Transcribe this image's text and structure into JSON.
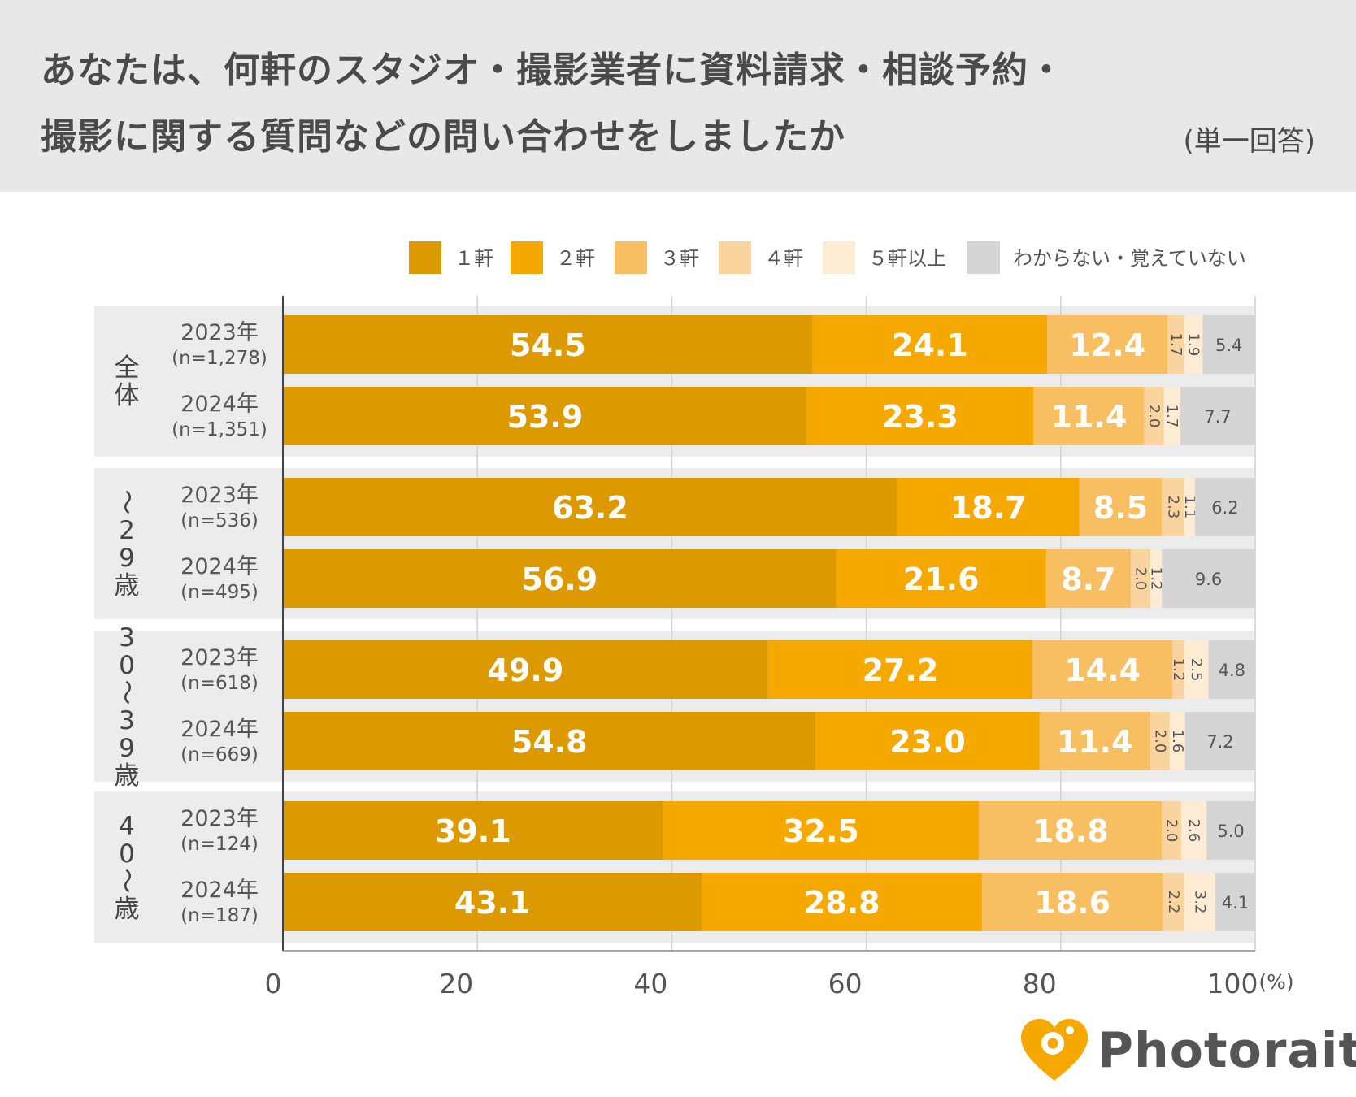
{
  "title": {
    "line1": "あなたは、何軒のスタジオ・撮影業者に資料請求・相談予約・",
    "line2": "撮影に関する質問などの問い合わせをしましたか",
    "note": "(単一回答)"
  },
  "brand": {
    "name": "Photorait",
    "color": "#f5a800"
  },
  "chart_data": {
    "type": "bar",
    "orientation": "horizontal",
    "stacked": true,
    "xlim": [
      0,
      100
    ],
    "x_ticks": [
      "0",
      "20",
      "40",
      "60",
      "80",
      "100"
    ],
    "x_unit": "(%)",
    "series": [
      {
        "name": "1軒",
        "legend": "１軒",
        "color": "#dd9a00"
      },
      {
        "name": "2軒",
        "legend": "２軒",
        "color": "#f5a800"
      },
      {
        "name": "3軒",
        "legend": "３軒",
        "color": "#f7bf62"
      },
      {
        "name": "4軒",
        "legend": "４軒",
        "color": "#fad49e"
      },
      {
        "name": "5軒以上",
        "legend": "５軒以上",
        "color": "#fdecd3"
      },
      {
        "name": "わからない・覚えていない",
        "legend": "わからない・覚えていない",
        "color": "#d5d5d5"
      }
    ],
    "groups": [
      {
        "label": "全体",
        "rows": [
          {
            "year": "2023年",
            "n": "(n=1,278)",
            "values": [
              54.5,
              24.1,
              12.4,
              1.7,
              1.9,
              5.4
            ]
          },
          {
            "year": "2024年",
            "n": "(n=1,351)",
            "values": [
              53.9,
              23.3,
              11.4,
              2.0,
              1.7,
              7.7
            ]
          }
        ]
      },
      {
        "label": "〜29歳",
        "rows": [
          {
            "year": "2023年",
            "n": "(n=536)",
            "values": [
              63.2,
              18.7,
              8.5,
              2.3,
              1.1,
              6.2
            ]
          },
          {
            "year": "2024年",
            "n": "(n=495)",
            "values": [
              56.9,
              21.6,
              8.7,
              2.0,
              1.2,
              9.6
            ]
          }
        ]
      },
      {
        "label": "30〜39歳",
        "rows": [
          {
            "year": "2023年",
            "n": "(n=618)",
            "values": [
              49.9,
              27.2,
              14.4,
              1.2,
              2.5,
              4.8
            ]
          },
          {
            "year": "2024年",
            "n": "(n=669)",
            "values": [
              54.8,
              23.0,
              11.4,
              2.0,
              1.6,
              7.2
            ]
          }
        ]
      },
      {
        "label": "40〜歳",
        "rows": [
          {
            "year": "2023年",
            "n": "(n=124)",
            "values": [
              39.1,
              32.5,
              18.8,
              2.0,
              2.6,
              5.0
            ]
          },
          {
            "year": "2024年",
            "n": "(n=187)",
            "values": [
              43.1,
              28.8,
              18.6,
              2.2,
              3.2,
              4.1
            ]
          }
        ]
      }
    ]
  }
}
